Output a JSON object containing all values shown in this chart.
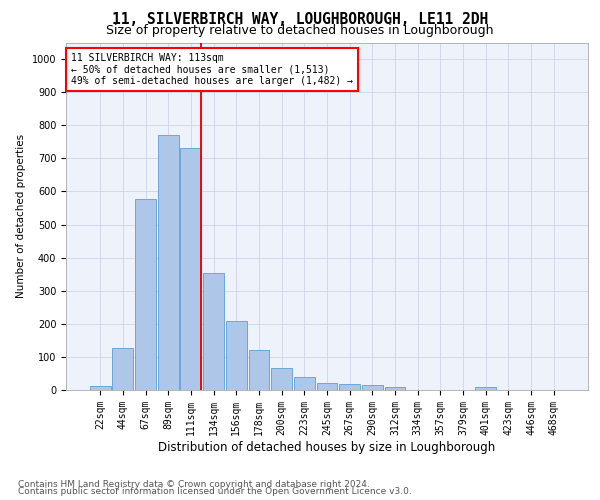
{
  "title": "11, SILVERBIRCH WAY, LOUGHBOROUGH, LE11 2DH",
  "subtitle": "Size of property relative to detached houses in Loughborough",
  "xlabel": "Distribution of detached houses by size in Loughborough",
  "ylabel": "Number of detached properties",
  "bins": [
    "22sqm",
    "44sqm",
    "67sqm",
    "89sqm",
    "111sqm",
    "134sqm",
    "156sqm",
    "178sqm",
    "200sqm",
    "223sqm",
    "245sqm",
    "267sqm",
    "290sqm",
    "312sqm",
    "334sqm",
    "357sqm",
    "379sqm",
    "401sqm",
    "423sqm",
    "446sqm",
    "468sqm"
  ],
  "values": [
    12,
    128,
    578,
    770,
    730,
    355,
    210,
    120,
    65,
    40,
    20,
    18,
    15,
    8,
    0,
    0,
    0,
    8,
    0,
    0,
    0
  ],
  "bar_color": "#aec6e8",
  "bar_edge_color": "#5a9fd4",
  "vline_color": "red",
  "vline_x_index": 4,
  "annotation_text": "11 SILVERBIRCH WAY: 113sqm\n← 50% of detached houses are smaller (1,513)\n49% of semi-detached houses are larger (1,482) →",
  "annotation_box_color": "white",
  "annotation_box_edge_color": "red",
  "ylim": [
    0,
    1050
  ],
  "yticks": [
    0,
    100,
    200,
    300,
    400,
    500,
    600,
    700,
    800,
    900,
    1000
  ],
  "footer_line1": "Contains HM Land Registry data © Crown copyright and database right 2024.",
  "footer_line2": "Contains public sector information licensed under the Open Government Licence v3.0.",
  "bg_color": "#eef2fb",
  "grid_color": "#c8cfe0",
  "title_fontsize": 10.5,
  "subtitle_fontsize": 9,
  "xlabel_fontsize": 8.5,
  "ylabel_fontsize": 7.5,
  "tick_fontsize": 7,
  "annotation_fontsize": 7,
  "footer_fontsize": 6.5
}
